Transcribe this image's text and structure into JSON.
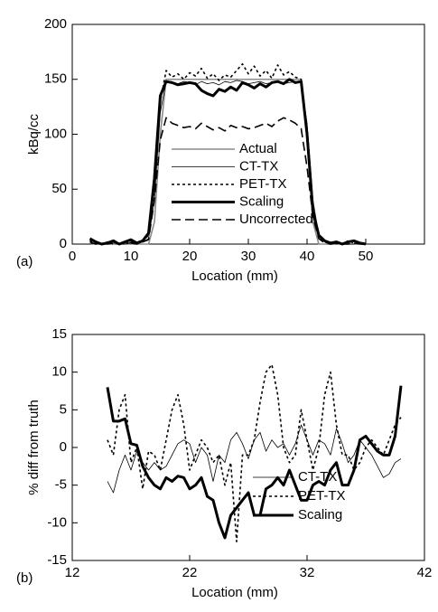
{
  "chart_data": [
    {
      "type": "line",
      "panel_label": "(a)",
      "x_label": "Location (mm)",
      "y_label": "kBq/cc",
      "xlim": [
        0,
        60
      ],
      "xticks": [
        0,
        10,
        20,
        30,
        40,
        50
      ],
      "ylim": [
        0,
        200
      ],
      "yticks": [
        0,
        50,
        100,
        150,
        200
      ],
      "legend": "center",
      "x": [
        3,
        4,
        5,
        6,
        7,
        8,
        9,
        10,
        11,
        12,
        13,
        14,
        15,
        16,
        17,
        18,
        19,
        20,
        21,
        22,
        23,
        24,
        25,
        26,
        27,
        28,
        29,
        30,
        31,
        32,
        33,
        34,
        35,
        36,
        37,
        38,
        39,
        40,
        41,
        42,
        43,
        44,
        45,
        46,
        47,
        48,
        49,
        50
      ],
      "series": [
        {
          "name": "Actual",
          "color": "#8c8c8c",
          "width": 1.6,
          "dash": "solid",
          "values": [
            0,
            0,
            0,
            0,
            0,
            0,
            0,
            0,
            0,
            0,
            0,
            20,
            100,
            150,
            150,
            150,
            150,
            150,
            150,
            150,
            150,
            150,
            150,
            150,
            150,
            150,
            150,
            150,
            150,
            150,
            150,
            150,
            150,
            150,
            150,
            150,
            150,
            100,
            20,
            0,
            0,
            0,
            0,
            0,
            0,
            0,
            0,
            0
          ]
        },
        {
          "name": "CT-TX",
          "color": "#000000",
          "width": 0.8,
          "dash": "solid",
          "values": [
            0,
            1,
            0,
            0,
            1,
            0,
            0,
            1,
            0,
            2,
            5,
            40,
            120,
            148,
            147,
            146,
            148,
            147,
            145,
            148,
            146,
            147,
            145,
            148,
            147,
            149,
            148,
            146,
            147,
            148,
            146,
            147,
            148,
            146,
            147,
            148,
            147,
            110,
            40,
            8,
            2,
            1,
            0,
            1,
            0,
            0,
            1,
            0
          ]
        },
        {
          "name": "PET-TX",
          "color": "#000000",
          "width": 1.6,
          "dash": "dotted",
          "values": [
            3,
            1,
            0,
            2,
            0,
            1,
            0,
            2,
            1,
            3,
            8,
            50,
            130,
            158,
            152,
            155,
            150,
            156,
            153,
            160,
            151,
            155,
            149,
            154,
            152,
            158,
            164,
            155,
            162,
            153,
            158,
            151,
            163,
            154,
            157,
            152,
            150,
            105,
            35,
            6,
            2,
            0,
            1,
            0,
            3,
            1,
            0,
            0
          ]
        },
        {
          "name": "Scaling",
          "color": "#000000",
          "width": 3,
          "dash": "solid",
          "values": [
            5,
            2,
            0,
            1,
            3,
            0,
            2,
            4,
            1,
            3,
            10,
            60,
            135,
            148,
            147,
            145,
            146,
            147,
            146,
            140,
            137,
            135,
            141,
            139,
            143,
            140,
            147,
            145,
            142,
            146,
            143,
            147,
            148,
            146,
            150,
            147,
            148,
            100,
            30,
            8,
            3,
            1,
            2,
            0,
            2,
            3,
            1,
            0
          ]
        },
        {
          "name": "Uncorrected",
          "color": "#000000",
          "width": 1.6,
          "dash": "dashed",
          "values": [
            2,
            0,
            1,
            0,
            1,
            0,
            2,
            1,
            0,
            2,
            4,
            40,
            95,
            115,
            110,
            108,
            106,
            107,
            105,
            110,
            107,
            104,
            106,
            103,
            108,
            106,
            107,
            105,
            106,
            108,
            110,
            107,
            112,
            115,
            113,
            110,
            105,
            70,
            25,
            5,
            1,
            0,
            1,
            0,
            0,
            1,
            0,
            0
          ]
        }
      ]
    },
    {
      "type": "line",
      "panel_label": "(b)",
      "x_label": "Location (mm)",
      "y_label": "% diff from truth",
      "xlim": [
        12,
        42
      ],
      "xticks": [
        12,
        22,
        32,
        42
      ],
      "ylim": [
        -15,
        15
      ],
      "yticks": [
        -15,
        -10,
        -5,
        0,
        5,
        10,
        15
      ],
      "legend": "lower right",
      "x": [
        15,
        15.5,
        16,
        16.5,
        17,
        17.5,
        18,
        18.5,
        19,
        19.5,
        20,
        20.5,
        21,
        21.5,
        22,
        22.5,
        23,
        23.5,
        24,
        24.5,
        25,
        25.5,
        26,
        26.5,
        27,
        27.5,
        28,
        28.5,
        29,
        29.5,
        30,
        30.5,
        31,
        31.5,
        32,
        32.5,
        33,
        33.5,
        34,
        34.5,
        35,
        35.5,
        36,
        36.5,
        37,
        37.5,
        38,
        38.5,
        39,
        39.5,
        40
      ],
      "series": [
        {
          "name": "CT-TX",
          "color": "#000000",
          "width": 0.8,
          "dash": "solid",
          "values": [
            -4.5,
            -6,
            -3,
            -1,
            -3,
            -0.5,
            -2,
            -3,
            -2,
            -3,
            -2.5,
            -1,
            0.5,
            1,
            0.5,
            -2,
            0,
            -1,
            -4.5,
            -1,
            -2,
            1,
            2,
            0.5,
            -1.5,
            1,
            2,
            -0.5,
            1,
            0,
            0.5,
            -1,
            0.5,
            3,
            1,
            -1,
            1,
            0.5,
            -1,
            2.5,
            0.5,
            -2,
            -1,
            1,
            0,
            -1,
            -2.5,
            -4,
            -3.5,
            -2,
            -1.5
          ]
        },
        {
          "name": "PET-TX",
          "color": "#000000",
          "width": 1.6,
          "dash": "dotted",
          "values": [
            1,
            -1,
            5,
            7,
            -2,
            0,
            -5.5,
            -0.5,
            -1,
            -3,
            1,
            5,
            7,
            3,
            -3,
            -1,
            1,
            0,
            -2,
            -1,
            -5,
            -2,
            -12.5,
            -1,
            -1,
            1,
            6,
            10,
            11,
            7,
            0,
            -2,
            -1,
            5,
            1,
            -3,
            0,
            7,
            10,
            3,
            -1,
            -1,
            -3,
            -2,
            0,
            1,
            0,
            -1,
            1,
            3,
            4
          ]
        },
        {
          "name": "Scaling",
          "color": "#000000",
          "width": 3,
          "dash": "solid",
          "values": [
            8,
            3.5,
            3.5,
            3.8,
            0.5,
            0.3,
            -2.5,
            -4,
            -5,
            -5.5,
            -4,
            -4.5,
            -3.8,
            -4,
            -5.5,
            -5,
            -4,
            -6.5,
            -7,
            -10,
            -12,
            -9,
            -8,
            -7,
            -6,
            -9,
            -9,
            -5.5,
            -5,
            -4,
            -5,
            -3,
            -5,
            -7,
            -7,
            -5,
            -4.5,
            -5,
            -3,
            -2,
            -5,
            -5,
            -3,
            1,
            1.5,
            0.5,
            -0.5,
            -1,
            -1,
            1.5,
            8.2
          ]
        }
      ]
    }
  ]
}
